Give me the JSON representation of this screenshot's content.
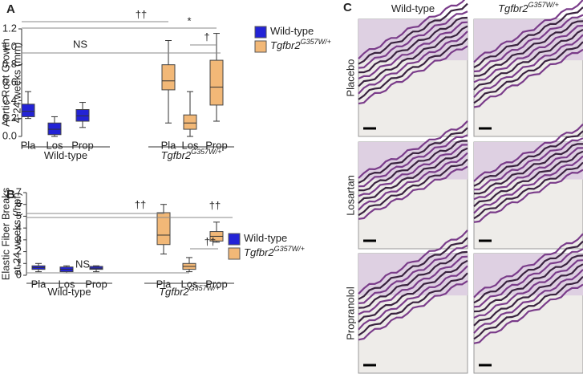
{
  "chart_data": [
    {
      "type": "box",
      "panel": "A",
      "ylabel": [
        "Aortic Root Growth",
        "4-24 weeks (mm)"
      ],
      "categories": [
        "Pla",
        "Los",
        "Prop",
        "Pla",
        "Los",
        "Prop"
      ],
      "groups": [
        {
          "text": "Wild-type"
        },
        {
          "text": "Tgfbr2",
          "sup": "G357W/+"
        }
      ],
      "ylim": [
        0,
        1.2
      ],
      "yticks": [
        {
          "value": 0,
          "label": "0.0"
        },
        {
          "value": 0.2,
          "label": "0.2"
        },
        {
          "value": 0.4,
          "label": "0.4"
        },
        {
          "value": 0.6,
          "label": "0.6"
        },
        {
          "value": 0.8,
          "label": "0.8"
        },
        {
          "value": 1,
          "label": "1.0"
        },
        {
          "value": 1.2,
          "label": "1.2"
        }
      ],
      "series": [
        {
          "name": "Wild-type",
          "color": "#2323d6",
          "boxes": [
            {
              "min": 0.2,
              "q1": 0.22,
              "median": 0.28,
              "q3": 0.36,
              "max": 0.5
            },
            {
              "min": 0,
              "q1": 0.02,
              "median": 0.08,
              "q3": 0.15,
              "max": 0.22
            },
            {
              "min": 0.1,
              "q1": 0.17,
              "median": 0.23,
              "q3": 0.3,
              "max": 0.38
            }
          ]
        },
        {
          "name": "Tgfbr2",
          "name_sup": "G357W/+",
          "color": "#f2b877",
          "boxes": [
            {
              "min": 0.15,
              "q1": 0.52,
              "median": 0.62,
              "q3": 0.8,
              "max": 1.07
            },
            {
              "min": 0,
              "q1": 0.08,
              "median": 0.15,
              "q3": 0.24,
              "max": 0.5
            },
            {
              "min": 0.17,
              "q1": 0.35,
              "median": 0.55,
              "q3": 0.85,
              "max": 1.15
            }
          ]
        }
      ],
      "annotations": [
        "††",
        "*",
        "NS",
        "†"
      ]
    },
    {
      "type": "box",
      "panel": "B",
      "ylabel": [
        "Elastic Fiber Breaks",
        "at 24 weeks (/hpf)"
      ],
      "categories": [
        "Pla",
        "Los",
        "Prop",
        "Pla",
        "Los",
        "Prop"
      ],
      "groups": [
        {
          "text": "Wild-type"
        },
        {
          "text": "Tgfbr2",
          "sup": "G357W/+"
        }
      ],
      "ylim": [
        0,
        7
      ],
      "yticks": [
        0,
        1,
        2,
        3,
        4,
        5,
        6,
        7
      ],
      "series": [
        {
          "name": "Wild-type",
          "color": "#2323d6",
          "boxes": [
            {
              "min": 0.3,
              "q1": 0.5,
              "median": 0.65,
              "q3": 0.8,
              "max": 1
            },
            {
              "min": 0.2,
              "q1": 0.3,
              "median": 0.5,
              "q3": 0.7,
              "max": 0.8
            },
            {
              "min": 0.3,
              "q1": 0.5,
              "median": 0.6,
              "q3": 0.75,
              "max": 0.8
            }
          ]
        },
        {
          "name": "Tgfbr2",
          "name_sup": "G357W/+",
          "color": "#f2b877",
          "boxes": [
            {
              "min": 1.8,
              "q1": 2.6,
              "median": 3.4,
              "q3": 5.3,
              "max": 6
            },
            {
              "min": 0.3,
              "q1": 0.5,
              "median": 0.75,
              "q3": 1,
              "max": 1.5
            },
            {
              "min": 2.8,
              "q1": 2.9,
              "median": 3.3,
              "q3": 3.7,
              "max": 4.5
            }
          ]
        }
      ],
      "annotations": [
        "††",
        "††",
        "††",
        "NS"
      ]
    }
  ],
  "panel_c": {
    "label": "C",
    "columns": [
      {
        "text": "Wild-type"
      },
      {
        "text": "Tgfbr2",
        "sup": "G357W/+"
      }
    ],
    "rows": [
      "Placebo",
      "Losartan",
      "Propranolol"
    ]
  }
}
